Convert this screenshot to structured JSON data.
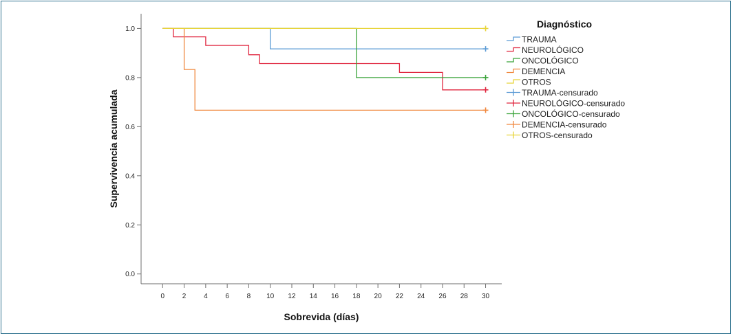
{
  "chart_data": {
    "type": "line",
    "step": true,
    "title": "",
    "xlabel": "Sobrevida (días)",
    "ylabel": "Supervivencia acumulada",
    "xlim": [
      -2,
      31.5
    ],
    "ylim": [
      -0.04,
      1.06
    ],
    "xticks": [
      0,
      2,
      4,
      6,
      8,
      10,
      12,
      14,
      16,
      18,
      20,
      22,
      24,
      26,
      28,
      30
    ],
    "yticks": [
      0.0,
      0.2,
      0.4,
      0.6,
      0.8,
      1.0
    ],
    "ytick_labels": [
      "0.0",
      "0.2",
      "0.4",
      "0.6",
      "0.8",
      "1.0"
    ],
    "legend_title": "Diagnóstico",
    "legend_position": "right",
    "series": [
      {
        "name": "TRAUMA",
        "color": "#5b9bd5",
        "x": [
          0,
          10,
          10,
          30
        ],
        "y": [
          1.0,
          1.0,
          0.917,
          0.917
        ]
      },
      {
        "name": "NEUROLÓGICO",
        "color": "#e0263f",
        "x": [
          0,
          1,
          1,
          4,
          4,
          8,
          8,
          9,
          9,
          22,
          22,
          26,
          26,
          30
        ],
        "y": [
          1.0,
          1.0,
          0.966,
          0.966,
          0.931,
          0.931,
          0.893,
          0.893,
          0.857,
          0.857,
          0.821,
          0.821,
          0.75,
          0.75
        ]
      },
      {
        "name": "ONCOLÓGICO",
        "color": "#3aa33a",
        "x": [
          0,
          18,
          18,
          30
        ],
        "y": [
          1.0,
          1.0,
          0.8,
          0.8
        ]
      },
      {
        "name": "DEMENCIA",
        "color": "#f0883e",
        "x": [
          0,
          2,
          2,
          3,
          3,
          30
        ],
        "y": [
          1.0,
          1.0,
          0.833,
          0.833,
          0.667,
          0.667
        ]
      },
      {
        "name": "OTROS",
        "color": "#e8d43a",
        "x": [
          0,
          30
        ],
        "y": [
          1.0,
          1.0
        ]
      }
    ],
    "censored": [
      {
        "name": "TRAUMA-censurado",
        "color": "#5b9bd5",
        "x": [
          30
        ],
        "y": [
          0.917
        ]
      },
      {
        "name": "NEUROLÓGICO-censurado",
        "color": "#e0263f",
        "x": [
          30
        ],
        "y": [
          0.75
        ]
      },
      {
        "name": "ONCOLÓGICO-censurado",
        "color": "#3aa33a",
        "x": [
          30
        ],
        "y": [
          0.8
        ]
      },
      {
        "name": "DEMENCIA-censurado",
        "color": "#f0883e",
        "x": [
          30
        ],
        "y": [
          0.667
        ]
      },
      {
        "name": "OTROS-censurado",
        "color": "#e8d43a",
        "x": [
          30
        ],
        "y": [
          1.0
        ]
      }
    ]
  },
  "colors": {
    "frame_border": "#2a6f8c",
    "axis": "#6e6e6e"
  }
}
